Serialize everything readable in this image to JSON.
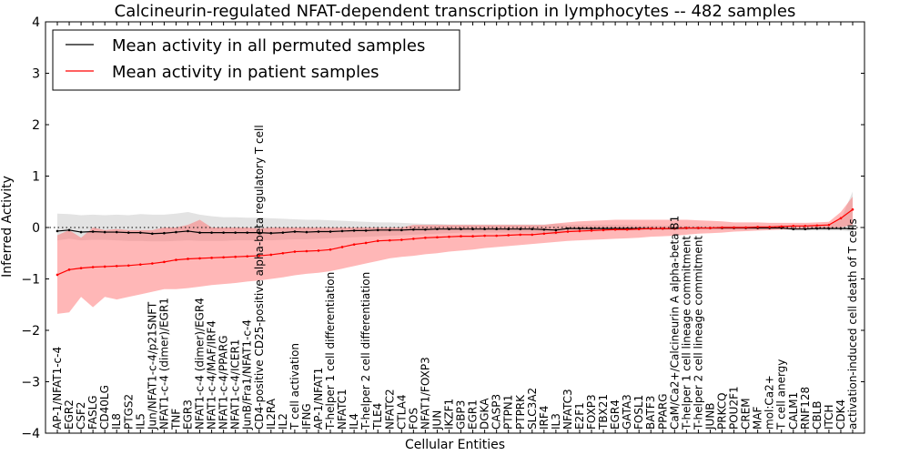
{
  "chart_data": {
    "type": "line",
    "title": "Calcineurin-regulated NFAT-dependent transcription in lymphocytes -- 482 samples",
    "xlabel": "Cellular Entities",
    "ylabel": "Inferred Activity",
    "ylim": [
      -4,
      4
    ],
    "yticks": [
      -4,
      -3,
      -2,
      -1,
      0,
      1,
      2,
      3,
      4
    ],
    "grid": false,
    "legend_position": "top-left",
    "categories": [
      "AP-1/NFAT1-c-4",
      "EGR2",
      "CSF2",
      "FASLG",
      "CD40LG",
      "IL8",
      "PTGS2",
      "IL5",
      "Jun/NFAT1-c-4/p21SNFT",
      "NFAT1-c-4 (dimer)/EGR1",
      "TNF",
      "EGR3",
      "NFAT1-c-4 (dimer)/EGR4",
      "NFAT1-c-4/MAF/IRF4",
      "NFAT1-c-4/PPARG",
      "NFAT1-c-4/ICER1",
      "JunB/Fra1/NFAT1-c-4",
      "CD4-positive CD25-positive alpha-beta regulatory T cell",
      "IL2RA",
      "IL2",
      "T cell activation",
      "IFNG",
      "AP-1/NFAT1",
      "T-helper 1 cell differentiation",
      "NFATC1",
      "IL4",
      "T-helper 2 cell differentiation",
      "TLE4",
      "NFATC2",
      "CTLA4",
      "FOS",
      "NFAT1/FOXP3",
      "JUN",
      "IKZF1",
      "GBP3",
      "EGR1",
      "DGKA",
      "CASP3",
      "PTPN1",
      "PTPRK",
      "SLC3A2",
      "IRF4",
      "IL3",
      "NFATC3",
      "E2F1",
      "FOXP3",
      "TBX21",
      "EGR4",
      "GATA3",
      "FOSL1",
      "BATF3",
      "PPARG",
      "CaM/Ca2+/Calcineurin A alpha-beta B1",
      "T-helper 1 cell lineage commitment",
      "T-helper 2 cell lineage commitment",
      "JUNB",
      "PRKCQ",
      "POU2F1",
      "CREM",
      "MAF",
      "mol:Ca2+",
      "T cell anergy",
      "CALM1",
      "RNF128",
      "CBLB",
      "ITCH",
      "CDK4",
      "activation-induced cell death of T cells"
    ],
    "series": [
      {
        "name": "Mean activity in all permuted samples",
        "color": "#000000",
        "band_color": "#b0b0b0",
        "values": [
          -0.07,
          -0.05,
          -0.09,
          -0.08,
          -0.09,
          -0.09,
          -0.1,
          -0.1,
          -0.12,
          -0.11,
          -0.09,
          -0.07,
          -0.1,
          -0.1,
          -0.1,
          -0.1,
          -0.1,
          -0.1,
          -0.11,
          -0.1,
          -0.08,
          -0.09,
          -0.08,
          -0.08,
          -0.07,
          -0.06,
          -0.06,
          -0.05,
          -0.05,
          -0.05,
          -0.04,
          -0.04,
          -0.03,
          -0.03,
          -0.03,
          -0.03,
          -0.03,
          -0.03,
          -0.03,
          -0.03,
          -0.03,
          -0.04,
          -0.05,
          -0.02,
          -0.02,
          -0.02,
          -0.02,
          -0.02,
          -0.02,
          -0.02,
          -0.02,
          -0.02,
          -0.02,
          -0.01,
          -0.01,
          -0.01,
          -0.01,
          -0.01,
          -0.01,
          -0.01,
          -0.01,
          -0.01,
          -0.03,
          -0.03,
          -0.02,
          -0.02,
          -0.02,
          -0.02
        ],
        "lower": [
          -0.25,
          -0.22,
          -0.25,
          -0.24,
          -0.24,
          -0.25,
          -0.26,
          -0.26,
          -0.27,
          -0.27,
          -0.26,
          -0.25,
          -0.26,
          -0.26,
          -0.26,
          -0.25,
          -0.25,
          -0.25,
          -0.25,
          -0.24,
          -0.23,
          -0.23,
          -0.22,
          -0.21,
          -0.2,
          -0.19,
          -0.18,
          -0.17,
          -0.16,
          -0.15,
          -0.14,
          -0.13,
          -0.12,
          -0.11,
          -0.1,
          -0.1,
          -0.1,
          -0.1,
          -0.1,
          -0.1,
          -0.1,
          -0.12,
          -0.14,
          -0.08,
          -0.07,
          -0.07,
          -0.06,
          -0.06,
          -0.06,
          -0.06,
          -0.05,
          -0.05,
          -0.05,
          -0.04,
          -0.04,
          -0.04,
          -0.04,
          -0.04,
          -0.04,
          -0.04,
          -0.04,
          -0.04,
          -0.06,
          -0.06,
          -0.06,
          -0.06,
          -0.06,
          -0.08
        ],
        "upper": [
          0.27,
          0.26,
          0.24,
          0.25,
          0.24,
          0.25,
          0.24,
          0.26,
          0.25,
          0.25,
          0.27,
          0.3,
          0.25,
          0.22,
          0.2,
          0.2,
          0.19,
          0.19,
          0.18,
          0.17,
          0.16,
          0.15,
          0.15,
          0.14,
          0.13,
          0.12,
          0.11,
          0.1,
          0.1,
          0.09,
          0.08,
          0.07,
          0.07,
          0.06,
          0.06,
          0.06,
          0.06,
          0.06,
          0.06,
          0.06,
          0.06,
          0.06,
          0.07,
          0.05,
          0.05,
          0.05,
          0.05,
          0.05,
          0.05,
          0.04,
          0.04,
          0.04,
          0.04,
          0.03,
          0.03,
          0.03,
          0.03,
          0.03,
          0.03,
          0.03,
          0.03,
          0.03,
          0.04,
          0.04,
          0.04,
          0.04,
          0.15,
          0.7
        ]
      },
      {
        "name": "Mean activity in patient samples",
        "color": "#ff0000",
        "band_color": "#ff7070",
        "values": [
          -0.92,
          -0.82,
          -0.79,
          -0.77,
          -0.76,
          -0.75,
          -0.74,
          -0.72,
          -0.7,
          -0.67,
          -0.63,
          -0.61,
          -0.6,
          -0.59,
          -0.58,
          -0.57,
          -0.56,
          -0.55,
          -0.53,
          -0.5,
          -0.47,
          -0.46,
          -0.45,
          -0.43,
          -0.38,
          -0.33,
          -0.3,
          -0.26,
          -0.25,
          -0.24,
          -0.22,
          -0.2,
          -0.19,
          -0.18,
          -0.17,
          -0.17,
          -0.16,
          -0.16,
          -0.15,
          -0.14,
          -0.14,
          -0.12,
          -0.1,
          -0.08,
          -0.07,
          -0.06,
          -0.05,
          -0.04,
          -0.04,
          -0.03,
          -0.02,
          -0.02,
          -0.02,
          -0.01,
          -0.01,
          -0.01,
          0.0,
          0.0,
          0.0,
          0.01,
          0.01,
          0.02,
          0.03,
          0.03,
          0.04,
          0.05,
          0.18,
          0.35
        ],
        "lower": [
          -1.68,
          -1.65,
          -1.35,
          -1.55,
          -1.35,
          -1.4,
          -1.35,
          -1.3,
          -1.25,
          -1.2,
          -1.2,
          -1.18,
          -1.15,
          -1.12,
          -1.1,
          -1.08,
          -1.05,
          -1.03,
          -1.0,
          -0.97,
          -0.93,
          -0.9,
          -0.88,
          -0.85,
          -0.8,
          -0.75,
          -0.7,
          -0.65,
          -0.6,
          -0.57,
          -0.55,
          -0.52,
          -0.5,
          -0.47,
          -0.45,
          -0.43,
          -0.4,
          -0.38,
          -0.36,
          -0.34,
          -0.32,
          -0.3,
          -0.28,
          -0.26,
          -0.25,
          -0.24,
          -0.23,
          -0.22,
          -0.21,
          -0.2,
          -0.18,
          -0.17,
          -0.16,
          -0.14,
          -0.12,
          -0.11,
          -0.1,
          -0.08,
          -0.07,
          -0.06,
          -0.05,
          -0.04,
          -0.03,
          -0.02,
          -0.02,
          -0.01,
          0.0,
          0.05
        ],
        "upper": [
          -0.15,
          -0.05,
          -0.2,
          0.0,
          -0.05,
          -0.03,
          -0.05,
          -0.05,
          -0.05,
          0.0,
          0.0,
          0.05,
          0.15,
          0.0,
          0.0,
          0.0,
          0.0,
          -0.02,
          0.0,
          0.0,
          0.0,
          0.0,
          0.0,
          0.0,
          0.0,
          0.0,
          0.0,
          0.0,
          0.0,
          0.0,
          0.05,
          0.05,
          0.05,
          0.05,
          0.05,
          0.05,
          0.05,
          0.05,
          0.05,
          0.05,
          0.05,
          0.05,
          0.08,
          0.1,
          0.12,
          0.13,
          0.14,
          0.15,
          0.15,
          0.15,
          0.15,
          0.15,
          0.15,
          0.15,
          0.14,
          0.13,
          0.12,
          0.1,
          0.1,
          0.1,
          0.09,
          0.09,
          0.09,
          0.09,
          0.1,
          0.11,
          0.3,
          0.6
        ]
      }
    ]
  }
}
